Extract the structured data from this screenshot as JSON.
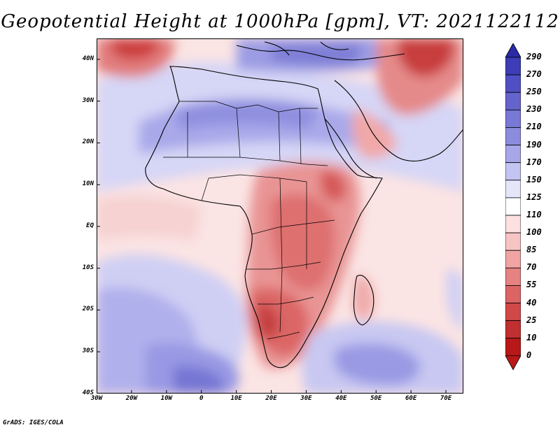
{
  "title": "Geopotential Height at 1000hPa [gpm], VT: 2021122112",
  "map": {
    "extent": {
      "lon_min": -30,
      "lon_max": 75,
      "lat_min": -40,
      "lat_max": 45
    },
    "lat_ticks": [
      {
        "value": 40,
        "label": "40N"
      },
      {
        "value": 30,
        "label": "30N"
      },
      {
        "value": 20,
        "label": "20N"
      },
      {
        "value": 10,
        "label": "10N"
      },
      {
        "value": 0,
        "label": "EQ"
      },
      {
        "value": -10,
        "label": "10S"
      },
      {
        "value": -20,
        "label": "20S"
      },
      {
        "value": -30,
        "label": "30S"
      },
      {
        "value": -40,
        "label": "40S"
      }
    ],
    "lon_ticks": [
      {
        "value": -30,
        "label": "30W"
      },
      {
        "value": -20,
        "label": "20W"
      },
      {
        "value": -10,
        "label": "10W"
      },
      {
        "value": 0,
        "label": "0"
      },
      {
        "value": 10,
        "label": "10E"
      },
      {
        "value": 20,
        "label": "20E"
      },
      {
        "value": 30,
        "label": "30E"
      },
      {
        "value": 40,
        "label": "40E"
      },
      {
        "value": 50,
        "label": "50E"
      },
      {
        "value": 60,
        "label": "60E"
      },
      {
        "value": 70,
        "label": "70E"
      }
    ]
  },
  "colorbar": {
    "levels": [
      "290",
      "270",
      "250",
      "230",
      "210",
      "190",
      "170",
      "150",
      "125",
      "110",
      "100",
      "85",
      "70",
      "55",
      "40",
      "25",
      "10",
      "0"
    ],
    "colors": [
      "#2a2aa8",
      "#3d3db8",
      "#5050c4",
      "#6464cc",
      "#7878d6",
      "#8c8cde",
      "#a6a6e8",
      "#c4c4f2",
      "#e6e6fa",
      "#ffffff",
      "#fde0e0",
      "#f7c4c4",
      "#f0a4a4",
      "#e68282",
      "#dc6464",
      "#d04848",
      "#c03030",
      "#b81818"
    ]
  },
  "footer": "GrADS: IGES/COLA"
}
